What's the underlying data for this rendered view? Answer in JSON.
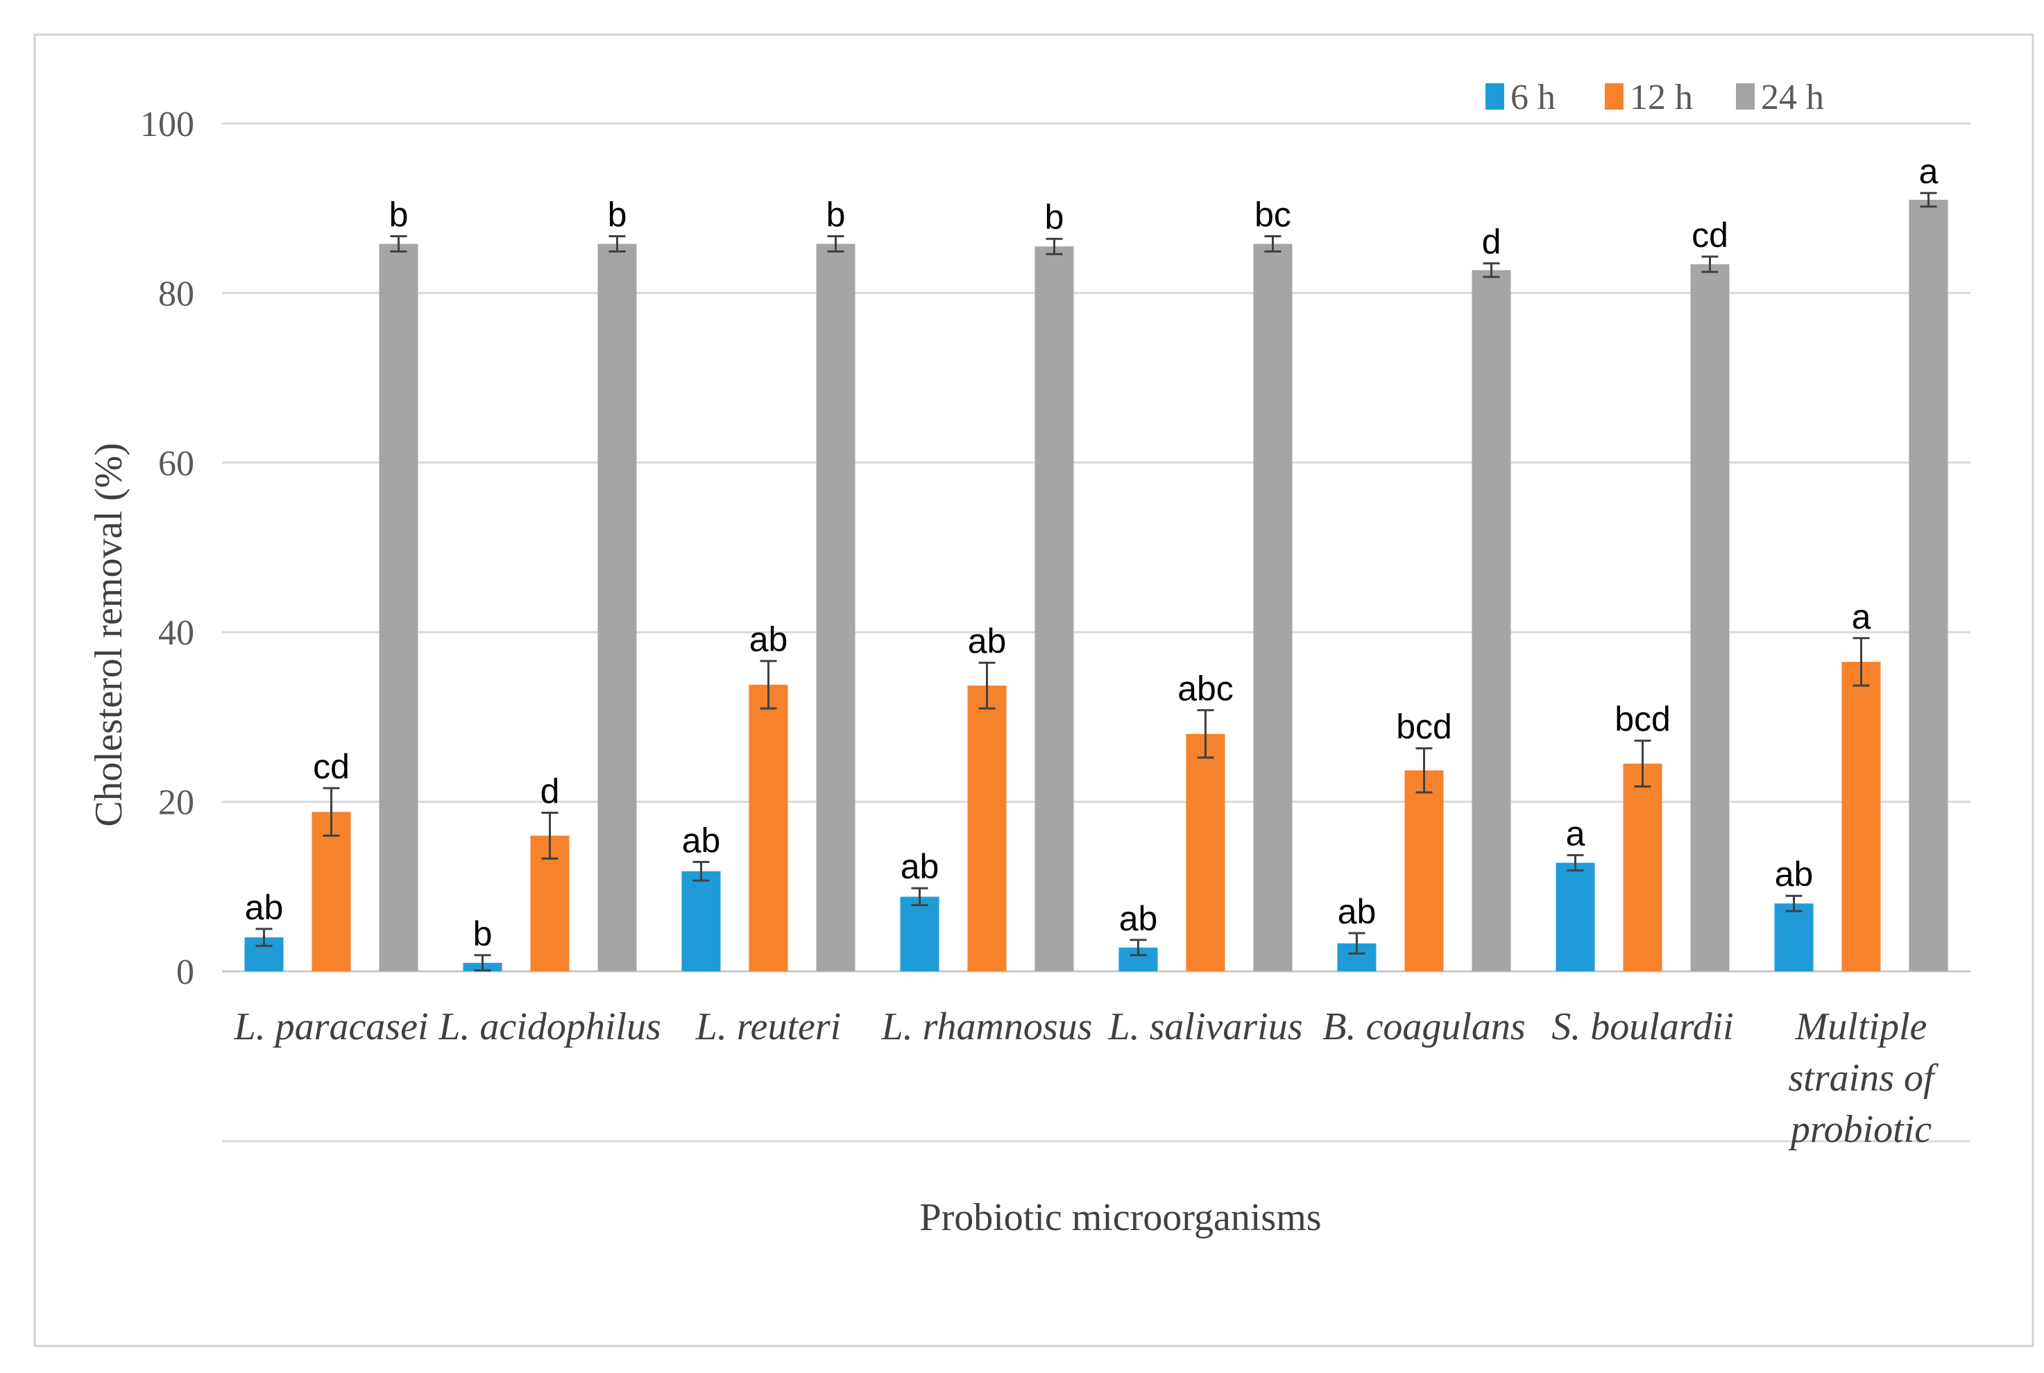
{
  "chart_data": {
    "type": "bar",
    "title": "",
    "xlabel": "Probiotic microorganisms",
    "ylabel": "Cholesterol removal (%)",
    "ylim": [
      0,
      100
    ],
    "yticks": [
      0,
      20,
      40,
      60,
      80,
      100
    ],
    "grid": true,
    "legend_position": "top-right",
    "categories": [
      [
        "L. paracasei"
      ],
      [
        "L. acidophilus"
      ],
      [
        "L. reuteri"
      ],
      [
        "L. rhamnosus"
      ],
      [
        "L. salivarius"
      ],
      [
        "B. coagulans"
      ],
      [
        "S. boulardii"
      ],
      [
        "Multiple",
        "strains of",
        "probiotic"
      ]
    ],
    "series": [
      {
        "name": "6 h",
        "color": "#1f9bd7",
        "values": [
          4.0,
          1.0,
          11.8,
          8.8,
          2.8,
          3.3,
          12.8,
          8.0
        ],
        "errors": [
          1.0,
          0.9,
          1.1,
          1.0,
          0.9,
          1.2,
          0.9,
          0.9
        ],
        "labels": [
          "ab",
          "b",
          "ab",
          "ab",
          "ab",
          "ab",
          "a",
          "ab"
        ]
      },
      {
        "name": "12 h",
        "color": "#f6822b",
        "values": [
          18.8,
          16.0,
          33.8,
          33.7,
          28.0,
          23.7,
          24.5,
          36.5
        ],
        "errors": [
          2.8,
          2.7,
          2.8,
          2.7,
          2.8,
          2.6,
          2.7,
          2.8
        ],
        "labels": [
          "cd",
          "d",
          "ab",
          "ab",
          "abc",
          "bcd",
          "bcd",
          "a"
        ]
      },
      {
        "name": "24 h",
        "color": "#a5a5a5",
        "values": [
          85.8,
          85.8,
          85.8,
          85.5,
          85.8,
          82.7,
          83.4,
          91.0
        ],
        "errors": [
          0.9,
          0.9,
          0.9,
          0.9,
          0.9,
          0.8,
          0.9,
          0.8
        ],
        "labels": [
          "b",
          "b",
          "b",
          "b",
          "bc",
          "d",
          "cd",
          "a"
        ]
      }
    ]
  }
}
